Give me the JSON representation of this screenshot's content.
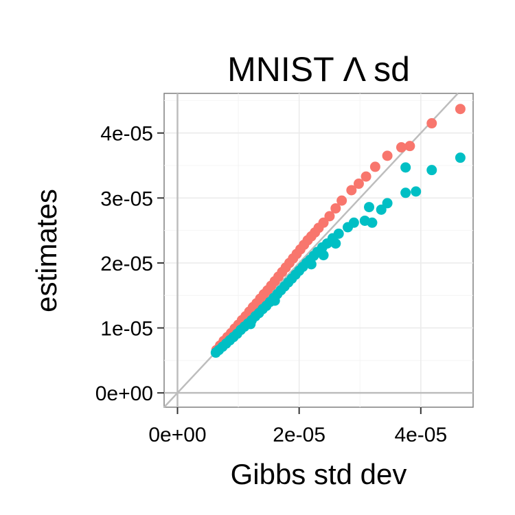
{
  "chart_data": {
    "type": "scatter",
    "title": "MNIST Λ sd",
    "xlabel": "Gibbs std dev",
    "ylabel": "estimates",
    "xlim": [
      -2.2e-06,
      4.86e-05
    ],
    "ylim": [
      -2.2e-06,
      4.61e-05
    ],
    "x_ticks": [
      0,
      2e-05,
      4e-05
    ],
    "x_tick_labels": [
      "0e+00",
      "2e-05",
      "4e-05"
    ],
    "y_ticks": [
      0,
      1e-05,
      2e-05,
      3e-05,
      4e-05
    ],
    "y_tick_labels": [
      "0e+00",
      "1e-05",
      "2e-05",
      "3e-05",
      "4e-05"
    ],
    "grid": true,
    "reference_lines": [
      "y = x",
      "x = 0",
      "y = 0"
    ],
    "legend": "none",
    "series": [
      {
        "color": "#F8766D",
        "points": [
          [
            6.4e-06,
            6.6e-06
          ],
          [
            7e-06,
            7.3e-06
          ],
          [
            7.6e-06,
            8e-06
          ],
          [
            8.2e-06,
            8.6e-06
          ],
          [
            8.8e-06,
            9.2e-06
          ],
          [
            9.4e-06,
            9.9e-06
          ],
          [
            1e-05,
            1.05e-05
          ],
          [
            1.06e-05,
            1.12e-05
          ],
          [
            1.12e-05,
            1.18e-05
          ],
          [
            1.18e-05,
            1.25e-05
          ],
          [
            1.24e-05,
            1.32e-05
          ],
          [
            1.3e-05,
            1.38e-05
          ],
          [
            1.36e-05,
            1.45e-05
          ],
          [
            1.42e-05,
            1.52e-05
          ],
          [
            1.48e-05,
            1.58e-05
          ],
          [
            1.54e-05,
            1.65e-05
          ],
          [
            1.6e-05,
            1.72e-05
          ],
          [
            1.66e-05,
            1.79e-05
          ],
          [
            1.72e-05,
            1.86e-05
          ],
          [
            1.78e-05,
            1.93e-05
          ],
          [
            1.84e-05,
            2e-05
          ],
          [
            1.9e-05,
            2.07e-05
          ],
          [
            1.96e-05,
            2.14e-05
          ],
          [
            2.02e-05,
            2.21e-05
          ],
          [
            2.08e-05,
            2.28e-05
          ],
          [
            2.14e-05,
            2.35e-05
          ],
          [
            2.2e-05,
            2.41e-05
          ],
          [
            2.26e-05,
            2.47e-05
          ],
          [
            2.32e-05,
            2.54e-05
          ],
          [
            2.4e-05,
            2.62e-05
          ],
          [
            2.5e-05,
            2.72e-05
          ],
          [
            2.6e-05,
            2.84e-05
          ],
          [
            2.7e-05,
            2.96e-05
          ],
          [
            2.86e-05,
            3.12e-05
          ],
          [
            2.98e-05,
            3.22e-05
          ],
          [
            3.1e-05,
            3.33e-05
          ],
          [
            3.25e-05,
            3.48e-05
          ],
          [
            3.45e-05,
            3.65e-05
          ],
          [
            3.68e-05,
            3.78e-05
          ],
          [
            3.82e-05,
            3.8e-05
          ],
          [
            4.18e-05,
            4.15e-05
          ],
          [
            4.65e-05,
            4.37e-05
          ]
        ]
      },
      {
        "color": "#00BFC4",
        "points": [
          [
            6.3e-06,
            6.2e-06
          ],
          [
            6.8e-06,
            6.6e-06
          ],
          [
            7.4e-06,
            7.1e-06
          ],
          [
            8e-06,
            7.6e-06
          ],
          [
            8.6e-06,
            8.1e-06
          ],
          [
            9.2e-06,
            8.6e-06
          ],
          [
            9.8e-06,
            9.1e-06
          ],
          [
            1.04e-05,
            9.7e-06
          ],
          [
            1.1e-05,
            1.02e-05
          ],
          [
            1.16e-05,
            1.07e-05
          ],
          [
            1.22e-05,
            1.12e-05
          ],
          [
            1.28e-05,
            1.18e-05
          ],
          [
            1.34e-05,
            1.23e-05
          ],
          [
            1.4e-05,
            1.29e-05
          ],
          [
            1.46e-05,
            1.34e-05
          ],
          [
            1.52e-05,
            1.4e-05
          ],
          [
            1.58e-05,
            1.46e-05
          ],
          [
            1.64e-05,
            1.52e-05
          ],
          [
            1.7e-05,
            1.58e-05
          ],
          [
            1.76e-05,
            1.64e-05
          ],
          [
            1.82e-05,
            1.7e-05
          ],
          [
            1.88e-05,
            1.76e-05
          ],
          [
            1.94e-05,
            1.82e-05
          ],
          [
            2e-05,
            1.88e-05
          ],
          [
            2.06e-05,
            1.94e-05
          ],
          [
            2.12e-05,
            2e-05
          ],
          [
            2.18e-05,
            2.05e-05
          ],
          [
            2.24e-05,
            2.11e-05
          ],
          [
            2.3e-05,
            2.17e-05
          ],
          [
            2.38e-05,
            2.24e-05
          ],
          [
            2.46e-05,
            2.3e-05
          ],
          [
            2.55e-05,
            2.38e-05
          ],
          [
            2.65e-05,
            2.45e-05
          ],
          [
            2.8e-05,
            2.55e-05
          ],
          [
            2.9e-05,
            2.62e-05
          ],
          [
            3.08e-05,
            2.65e-05
          ],
          [
            3.2e-05,
            2.62e-05
          ],
          [
            3.15e-05,
            2.86e-05
          ],
          [
            3.35e-05,
            2.82e-05
          ],
          [
            3.45e-05,
            2.92e-05
          ],
          [
            3.75e-05,
            3.08e-05
          ],
          [
            3.92e-05,
            3.1e-05
          ],
          [
            3.75e-05,
            3.47e-05
          ],
          [
            4.18e-05,
            3.43e-05
          ],
          [
            4.65e-05,
            3.62e-05
          ],
          [
            1.2e-05,
            1.06e-05
          ],
          [
            1.6e-05,
            1.42e-05
          ],
          [
            2.2e-05,
            1.98e-05
          ],
          [
            2.4e-05,
            2.12e-05
          ],
          [
            2.6e-05,
            2.3e-05
          ]
        ]
      }
    ]
  }
}
